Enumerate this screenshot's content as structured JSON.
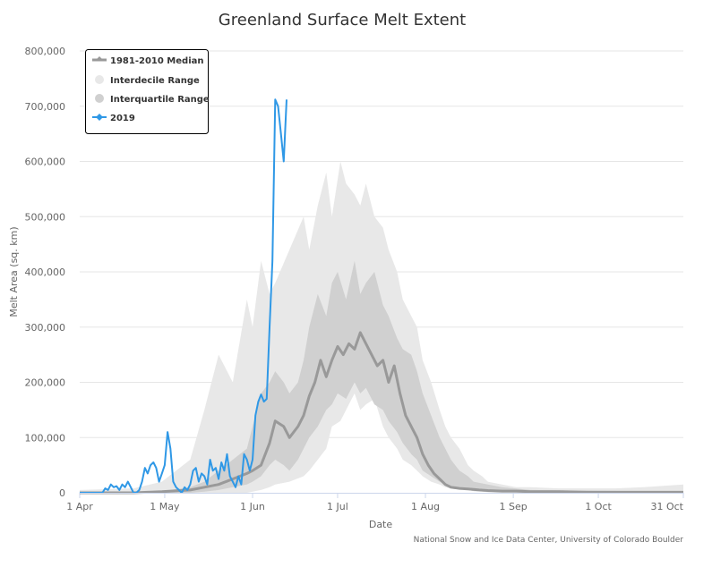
{
  "chart_data": {
    "type": "area",
    "title": "Greenland Surface Melt Extent",
    "xlabel": "Date",
    "ylabel": "Melt Area (sq. km)",
    "credit": "National Snow and Ice Data Center, University of Colorado Boulder",
    "x_ticks": [
      "1 Apr",
      "1 May",
      "1 Jun",
      "1 Jul",
      "1 Aug",
      "1 Sep",
      "1 Oct",
      "31 Oct"
    ],
    "y_ticks": [
      "0",
      "100,000",
      "200,000",
      "300,000",
      "400,000",
      "500,000",
      "600,000",
      "700,000",
      "800,000"
    ],
    "xlim": [
      "1 Apr",
      "31 Oct"
    ],
    "ylim": [
      0,
      800000
    ],
    "grid": "horizontal",
    "legend_position": "top-left",
    "colors": {
      "median": "#999999",
      "interdecile": "#e8e8e8",
      "interquartile": "#d0d0d0",
      "year_2019": "#2f98e6"
    },
    "series": [
      {
        "name": "1981-2010 Median",
        "kind": "line",
        "x_day_of_year": [
          91,
          100,
          110,
          120,
          130,
          135,
          140,
          145,
          150,
          152,
          155,
          158,
          160,
          163,
          165,
          168,
          170,
          172,
          174,
          176,
          178,
          180,
          182,
          184,
          186,
          188,
          190,
          192,
          194,
          196,
          198,
          200,
          202,
          204,
          206,
          208,
          210,
          212,
          214,
          216,
          218,
          220,
          222,
          225,
          228,
          230,
          232,
          235,
          240,
          245,
          250,
          255,
          260,
          270,
          280,
          290,
          304
        ],
        "values": [
          0,
          0,
          0,
          2000,
          5000,
          10000,
          15000,
          25000,
          35000,
          40000,
          50000,
          90000,
          130000,
          120000,
          100000,
          120000,
          140000,
          175000,
          200000,
          240000,
          210000,
          240000,
          265000,
          250000,
          270000,
          260000,
          290000,
          270000,
          250000,
          230000,
          240000,
          200000,
          230000,
          180000,
          140000,
          120000,
          100000,
          70000,
          50000,
          35000,
          25000,
          15000,
          10000,
          8000,
          7000,
          6000,
          5000,
          4000,
          3000,
          3000,
          2000,
          2000,
          2000,
          1000,
          1000,
          1000,
          1000
        ]
      },
      {
        "name": "Interdecile Range",
        "kind": "range",
        "x_day_of_year": [
          91,
          110,
          120,
          130,
          135,
          140,
          145,
          150,
          152,
          155,
          158,
          160,
          165,
          170,
          172,
          175,
          178,
          180,
          183,
          185,
          188,
          190,
          192,
          195,
          198,
          200,
          203,
          205,
          208,
          210,
          212,
          215,
          218,
          220,
          222,
          225,
          228,
          230,
          233,
          235,
          240,
          245,
          250,
          260,
          270,
          280,
          290,
          304
        ],
        "low": [
          0,
          0,
          0,
          0,
          0,
          0,
          0,
          0,
          2000,
          5000,
          10000,
          15000,
          20000,
          30000,
          40000,
          60000,
          80000,
          120000,
          130000,
          150000,
          180000,
          150000,
          160000,
          170000,
          120000,
          100000,
          80000,
          60000,
          50000,
          40000,
          30000,
          20000,
          15000,
          10000,
          8000,
          6000,
          5000,
          3000,
          2000,
          1000,
          0,
          0,
          0,
          0,
          0,
          0,
          0,
          0
        ],
        "high": [
          5000,
          8000,
          20000,
          60000,
          150000,
          250000,
          200000,
          350000,
          300000,
          420000,
          360000,
          380000,
          440000,
          500000,
          440000,
          520000,
          580000,
          500000,
          600000,
          560000,
          540000,
          520000,
          560000,
          500000,
          480000,
          440000,
          400000,
          350000,
          320000,
          300000,
          240000,
          200000,
          150000,
          120000,
          100000,
          80000,
          50000,
          40000,
          30000,
          20000,
          15000,
          10000,
          10000,
          8000,
          8000,
          8000,
          10000,
          15000
        ]
      },
      {
        "name": "Interquartile Range",
        "kind": "range",
        "x_day_of_year": [
          91,
          120,
          130,
          135,
          140,
          145,
          150,
          152,
          155,
          158,
          160,
          163,
          165,
          168,
          170,
          172,
          175,
          178,
          180,
          182,
          185,
          188,
          190,
          192,
          195,
          198,
          200,
          203,
          205,
          208,
          210,
          212,
          215,
          218,
          220,
          222,
          225,
          228,
          230,
          235,
          240,
          250,
          304
        ],
        "low": [
          0,
          0,
          0,
          2000,
          5000,
          10000,
          15000,
          20000,
          30000,
          50000,
          60000,
          50000,
          40000,
          60000,
          80000,
          100000,
          120000,
          150000,
          160000,
          180000,
          170000,
          200000,
          180000,
          190000,
          160000,
          150000,
          130000,
          110000,
          90000,
          70000,
          60000,
          40000,
          30000,
          20000,
          15000,
          10000,
          8000,
          5000,
          3000,
          2000,
          1000,
          0,
          0
        ],
        "high": [
          1000,
          3000,
          10000,
          20000,
          40000,
          60000,
          80000,
          120000,
          180000,
          200000,
          220000,
          200000,
          180000,
          200000,
          240000,
          300000,
          360000,
          320000,
          380000,
          400000,
          350000,
          420000,
          360000,
          380000,
          400000,
          340000,
          320000,
          280000,
          260000,
          250000,
          220000,
          180000,
          140000,
          100000,
          80000,
          60000,
          40000,
          30000,
          20000,
          15000,
          10000,
          5000,
          2000
        ]
      },
      {
        "name": "2019",
        "kind": "line",
        "x_day_of_year": [
          91,
          93,
          96,
          99,
          100,
          101,
          102,
          103,
          104,
          105,
          106,
          107,
          108,
          109,
          110,
          111,
          112,
          113,
          114,
          115,
          116,
          117,
          118,
          119,
          120,
          121,
          122,
          123,
          124,
          125,
          126,
          127,
          128,
          129,
          130,
          131,
          132,
          133,
          134,
          135,
          136,
          137,
          138,
          139,
          140,
          141,
          142,
          143,
          144,
          145,
          146,
          147,
          148,
          149,
          150,
          151,
          152,
          153,
          154,
          155,
          156,
          157,
          158,
          159,
          160,
          161,
          162,
          163,
          164
        ],
        "values": [
          0,
          0,
          0,
          0,
          8000,
          5000,
          15000,
          10000,
          12000,
          5000,
          15000,
          10000,
          20000,
          10000,
          0,
          0,
          5000,
          20000,
          45000,
          35000,
          50000,
          55000,
          45000,
          20000,
          35000,
          50000,
          110000,
          80000,
          20000,
          10000,
          5000,
          0,
          10000,
          5000,
          15000,
          40000,
          45000,
          20000,
          35000,
          30000,
          15000,
          60000,
          40000,
          45000,
          25000,
          55000,
          40000,
          70000,
          30000,
          20000,
          10000,
          30000,
          15000,
          70000,
          60000,
          40000,
          60000,
          140000,
          165000,
          178000,
          165000,
          170000,
          300000,
          420000,
          712000,
          700000,
          650000,
          600000,
          712000
        ]
      }
    ]
  }
}
